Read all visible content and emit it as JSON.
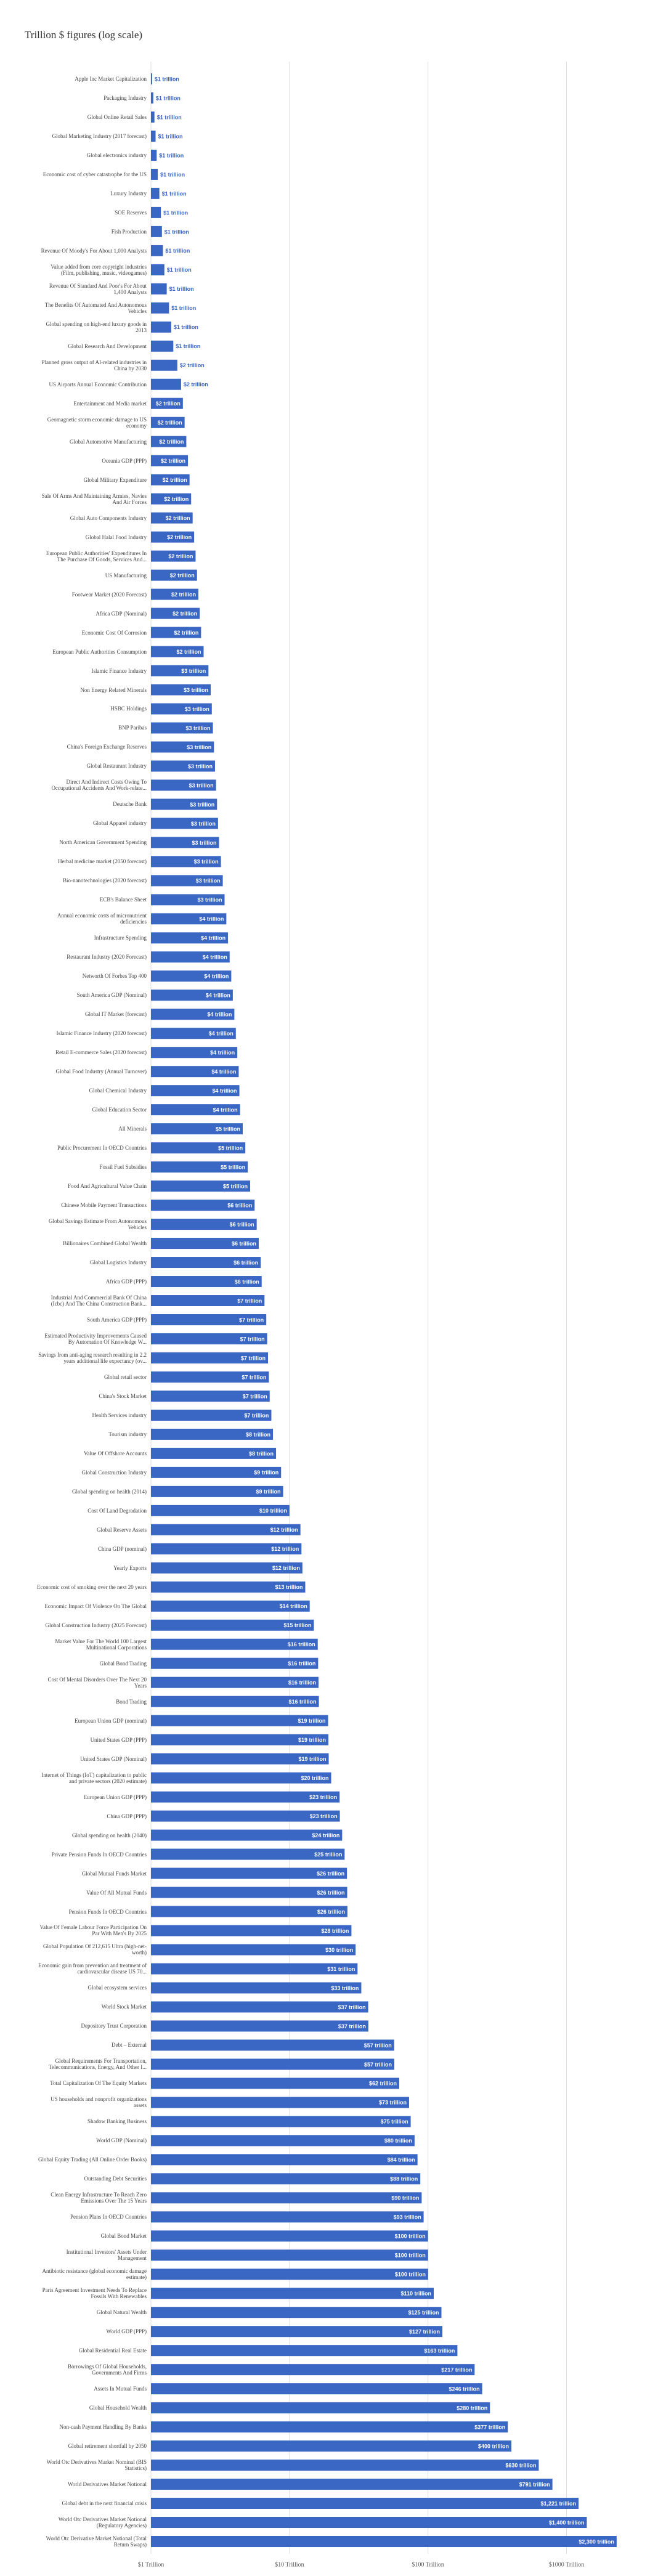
{
  "chart_data": {
    "type": "barh",
    "title": "Trillion $ figures (log scale)",
    "categories": [
      "Apple Inc Market Capitalization",
      "Packaging Industry",
      "Global Online Retail Sales",
      "Global Marketing Industry (2017 forecast)",
      "Global electronics industry",
      "Economic cost of cyber catastrophe for the US",
      "Luxury Industry",
      "SOE Reserves",
      "Fish Production",
      "Revenue Of Moody's For About 1,000 Analysts",
      "Value added from core copyright industries (Film, publishing, music, videogames)",
      "Revenue Of Standard And Poor's For About 1,400 Analysts",
      "The Benefits Of Automated And Autonomous Vehicles",
      "Global spending on high-end luxury goods in 2013",
      "Global Research And Development",
      "Planned gross output of AI-related industries in China by 2030",
      "US Airports Annual Economic Contribution",
      "Entertainment and Media market",
      "Geomagnetic storm economic damage to US economy",
      "Global Automotive Manufacturing",
      "Oceania GDP (PPP)",
      "Global Military Expenditure",
      "Sale Of Arms And Maintaining Armies, Navies And Air Forces",
      "Global Auto Components Industry",
      "Global Halal Food Industry",
      "European Public Authorities' Expenditures In The Purchase Of Goods, Services And...",
      "US Manufacturing",
      "Footwear Market (2020 Forecast)",
      "Africa GDP (Nominal)",
      "Economic Cost Of Corrosion",
      "European Public Authorities Consumption",
      "Islamic Finance Industry",
      "Non Energy Related Minerals",
      "HSBC Holdings",
      "BNP Paribas",
      "China's Foreign Exchange Reserves",
      "Global Restaurant Industry",
      "Direct And Indirect Costs Owing To Occupational Accidents And Work-relate...",
      "Deutsche Bank",
      "Global Apparel industry",
      "North American Government Spending",
      "Herbal medicine market (2050 forecast)",
      "Bio-nanotechnologies (2020 forecast)",
      "ECB's Balance Sheet",
      "Annual economic costs of micronutrient deficiencies",
      "Infrastructure Spending",
      "Restaurant Industry (2020 Forecast)",
      "Networth Of Forbes Top 400",
      "South America GDP (Nominal)",
      "Global IT Market (forecast)",
      "Islamic Finance Industry (2020 forecast)",
      "Retail E-commerce Sales (2020 forecast)",
      "Global Food Industry (Annual Turnover)",
      "Global Chemical Industry",
      "Global Education Sector",
      "All Minerals",
      "Public Procurement In OECD Countries",
      "Fossil Fuel Subsidies",
      "Food And Agricultural Value Chain",
      "Chinese Mobile Payment Transactions",
      "Global Savings Estimate From Autonomous Vehicles",
      "Billionaires Combined Global Wealth",
      "Global Logistics Industry",
      "Africa GDP (PPP)",
      "Industrial And Commercial Bank Of China (Icbc) And The China Construction Bank...",
      "South America GDP (PPP)",
      "Estimated Productivity Improvements Caused By Automation Of Knowledge W...",
      "Savings from anti-aging research resulting in 2.2 years additional life expectancy (ov...",
      "Global retail sector",
      "China's Stock Market",
      "Health Services industry",
      "Tourism industry",
      "Value Of Offshore Accounts",
      "Global Construction Industry",
      "Global spending on health (2014)",
      "Cost Of Land Degradation",
      "Global Reserve Assets",
      "China GDP (nominal)",
      "Yearly Exports",
      "Economic cost of smoking over the next 20 years",
      "Economic Impact Of Violence On The Global",
      "Global Construction Industry (2025 Forecast)",
      "Market Value For The World 100 Largest Multinational Corporations",
      "Global Bond Trading",
      "Cost Of Mental Disorders Over The Next 20 Years",
      "Bond Trading",
      "European Union GDP (nominal)",
      "United States GDP (PPP)",
      "United States GDP (Nominal)",
      "Internet of Things (IoT) capitalization to public and private sectors (2020 estimate)",
      "European Union GDP (PPP)",
      "China GDP (PPP)",
      "Global spending on health (2040)",
      "Private Pension Funds In OECD Countries",
      "Global Mutual Funds Market",
      "Value Of All Mutual Funds",
      "Pension Funds In OECD Countries",
      "Value Of Female Labour Force Participation On Par With Men's By 2025",
      "Global Population Of 212,615 Ultra (high-net-worth)",
      "Economic gain from prevention and treatment of cardiovascular disease US 70...",
      "Global ecosystem services",
      "World Stock Market",
      "Depository Trust Corporation",
      "Debt – External",
      "Global Requirements For Transportation, Telecommunications, Energy, And Other I...",
      "Total Capitalization Of The Equity Markets",
      "US households and nonprofit organizations assets",
      "Shadow Banking Business",
      "World GDP (Nominal)",
      "Global Equity Trading (All Online Order Books)",
      "Outstanding Debt Securities",
      "Clean Energy Infrastructure To Reach Zero Emissions Over The 15 Years",
      "Pension Plans In OECD Countries",
      "Global Bond Market",
      "Institutional Investors' Assets Under Management",
      "Antibiotic resistance (global economic damage estimate)",
      "Paris Agreement Investment Needs To Replace Fossils With Renewables",
      "Global Natural Wealth",
      "World GDP (PPP)",
      "Global Residential Real Estate",
      "Borrowings Of Global Households, Governments And Firms",
      "Assets In Mutual Funds",
      "Global Household Wealth",
      "Non-cash Payment Handling By Banks",
      "Global retirement shortfall by 2050",
      "World Otc Derivatives Market Nominal (BIS Statistics)",
      "World Derivatives Market Notional",
      "Global debt in the next financial crisis",
      "World Otc Derivatives Market Notional (Regulatory Agencies)",
      "World Otc Derivative Market Notional (Total Return Swaps)"
    ],
    "values": [
      1.02,
      1.04,
      1.06,
      1.08,
      1.1,
      1.12,
      1.15,
      1.18,
      1.2,
      1.22,
      1.25,
      1.3,
      1.35,
      1.4,
      1.45,
      1.55,
      1.65,
      1.7,
      1.75,
      1.8,
      1.85,
      1.9,
      1.95,
      2,
      2.05,
      2.1,
      2.15,
      2.2,
      2.25,
      2.3,
      2.4,
      2.6,
      2.7,
      2.75,
      2.8,
      2.85,
      2.9,
      2.95,
      3,
      3.05,
      3.1,
      3.2,
      3.3,
      3.4,
      3.5,
      3.6,
      3.7,
      3.8,
      3.9,
      4,
      4.1,
      4.2,
      4.3,
      4.35,
      4.4,
      4.6,
      4.8,
      5,
      5.2,
      5.6,
      5.8,
      6,
      6.2,
      6.3,
      6.6,
      6.8,
      6.9,
      7,
      7.1,
      7.2,
      7.4,
      7.6,
      8,
      8.7,
      9,
      10,
      12,
      12.2,
      12.4,
      13,
      14,
      15,
      16,
      16.1,
      16.2,
      16.3,
      19,
      19.1,
      19.2,
      20,
      23,
      23.1,
      24,
      25,
      26,
      26.1,
      26.2,
      28,
      30,
      31,
      33,
      37,
      37.1,
      57,
      57.1,
      62,
      73,
      75,
      80,
      84,
      88,
      90,
      93,
      100,
      100.1,
      100.2,
      110,
      125,
      127,
      163,
      217,
      246,
      280,
      377,
      400,
      630,
      791,
      1221,
      1400,
      2300
    ],
    "value_labels": [
      "$1 trillion",
      "$1 trillion",
      "$1 trillion",
      "$1 trillion",
      "$1 trillion",
      "$1 trillion",
      "$1 trillion",
      "$1 trillion",
      "$1 trillion",
      "$1 trillion",
      "$1 trillion",
      "$1 trillion",
      "$1 trillion",
      "$1 trillion",
      "$1 trillion",
      "$2 trillion",
      "$2 trillion",
      "$2 trillion",
      "$2 trillion",
      "$2 trillion",
      "$2 trillion",
      "$2 trillion",
      "$2 trillion",
      "$2 trillion",
      "$2 trillion",
      "$2 trillion",
      "$2 trillion",
      "$2 trillion",
      "$2 trillion",
      "$2 trillion",
      "$2 trillion",
      "$3 trillion",
      "$3 trillion",
      "$3 trillion",
      "$3 trillion",
      "$3 trillion",
      "$3 trillion",
      "$3 trillion",
      "$3 trillion",
      "$3 trillion",
      "$3 trillion",
      "$3 trillion",
      "$3 trillion",
      "$3 trillion",
      "$4 trillion",
      "$4 trillion",
      "$4 trillion",
      "$4 trillion",
      "$4 trillion",
      "$4 trillion",
      "$4 trillion",
      "$4 trillion",
      "$4 trillion",
      "$4 trillion",
      "$4 trillion",
      "$5 trillion",
      "$5 trillion",
      "$5 trillion",
      "$5 trillion",
      "$6 trillion",
      "$6 trillion",
      "$6 trillion",
      "$6 trillion",
      "$6 trillion",
      "$7 trillion",
      "$7 trillion",
      "$7 trillion",
      "$7 trillion",
      "$7 trillion",
      "$7 trillion",
      "$7 trillion",
      "$8 trillion",
      "$8 trillion",
      "$9 trillion",
      "$9 trillion",
      "$10 trillion",
      "$12 trillion",
      "$12 trillion",
      "$12 trillion",
      "$13 trillion",
      "$14 trillion",
      "$15 trillion",
      "$16 trillion",
      "$16 trillion",
      "$16 trillion",
      "$16 trillion",
      "$19 trillion",
      "$19 trillion",
      "$19 trillion",
      "$20 trillion",
      "$23 trillion",
      "$23 trillion",
      "$24 trillion",
      "$25 trillion",
      "$26 trillion",
      "$26 trillion",
      "$26 trillion",
      "$28 trillion",
      "$30 trillion",
      "$31 trillion",
      "$33 trillion",
      "$37 trillion",
      "$37 trillion",
      "$57 trillion",
      "$57 trillion",
      "$62 trillion",
      "$73 trillion",
      "$75 trillion",
      "$80 trillion",
      "$84 trillion",
      "$88 trillion",
      "$90 trillion",
      "$93 trillion",
      "$100 trillion",
      "$100 trillion",
      "$100 trillion",
      "$110 trillion",
      "$125 trillion",
      "$127 trillion",
      "$163 trillion",
      "$217 trillion",
      "$246 trillion",
      "$280 trillion",
      "$377 trillion",
      "$400 trillion",
      "$630 trillion",
      "$791 trillion",
      "$1,221 trillion",
      "$1,400 trillion",
      "$2,300 trillion"
    ],
    "color": "#3a66c4",
    "log_scale": true,
    "grid": true,
    "xlim": [
      1,
      2500
    ],
    "xticks": [
      {
        "value": 1,
        "label": "$1 Trillion"
      },
      {
        "value": 10,
        "label": "$10 Trillion"
      },
      {
        "value": 100,
        "label": "$100 Trillion"
      },
      {
        "value": 1000,
        "label": "$1000 Trillion"
      }
    ]
  }
}
